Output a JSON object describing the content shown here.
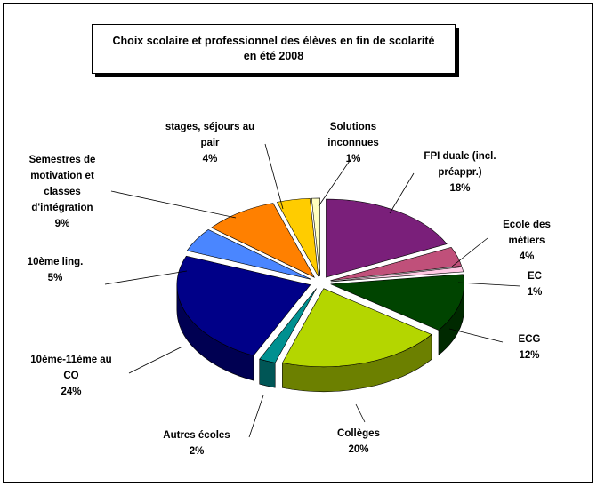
{
  "chart_data": {
    "type": "pie",
    "title": "Choix scolaire et professionnel des élèves en fin de scolarité\nen été 2008",
    "categories": [
      "FPI duale (incl.\npréappr.)",
      "Ecole des métiers",
      "EC",
      "ECG",
      "Collèges",
      "Autres écoles",
      "10ème-11ème  au\nCO",
      "10ème ling.",
      "Semestres de\nmotivation et\nclasses\nd'intégration",
      "stages, séjours au\npair",
      "Solutions\ninconnues"
    ],
    "values": [
      18,
      4,
      1,
      12,
      20,
      2,
      24,
      5,
      9,
      4,
      1
    ],
    "value_labels": [
      "18%",
      "4%",
      "1%",
      "12%",
      "20%",
      "2%",
      "24%",
      "5%",
      "9%",
      "4%",
      "1%"
    ],
    "colors": [
      "#7a1f7a",
      "#c0507a",
      "#ffc8e4",
      "#004400",
      "#b4d600",
      "#009090",
      "#000088",
      "#4a86ff",
      "#ff8000",
      "#ffcc00",
      "#ffffc0"
    ]
  }
}
